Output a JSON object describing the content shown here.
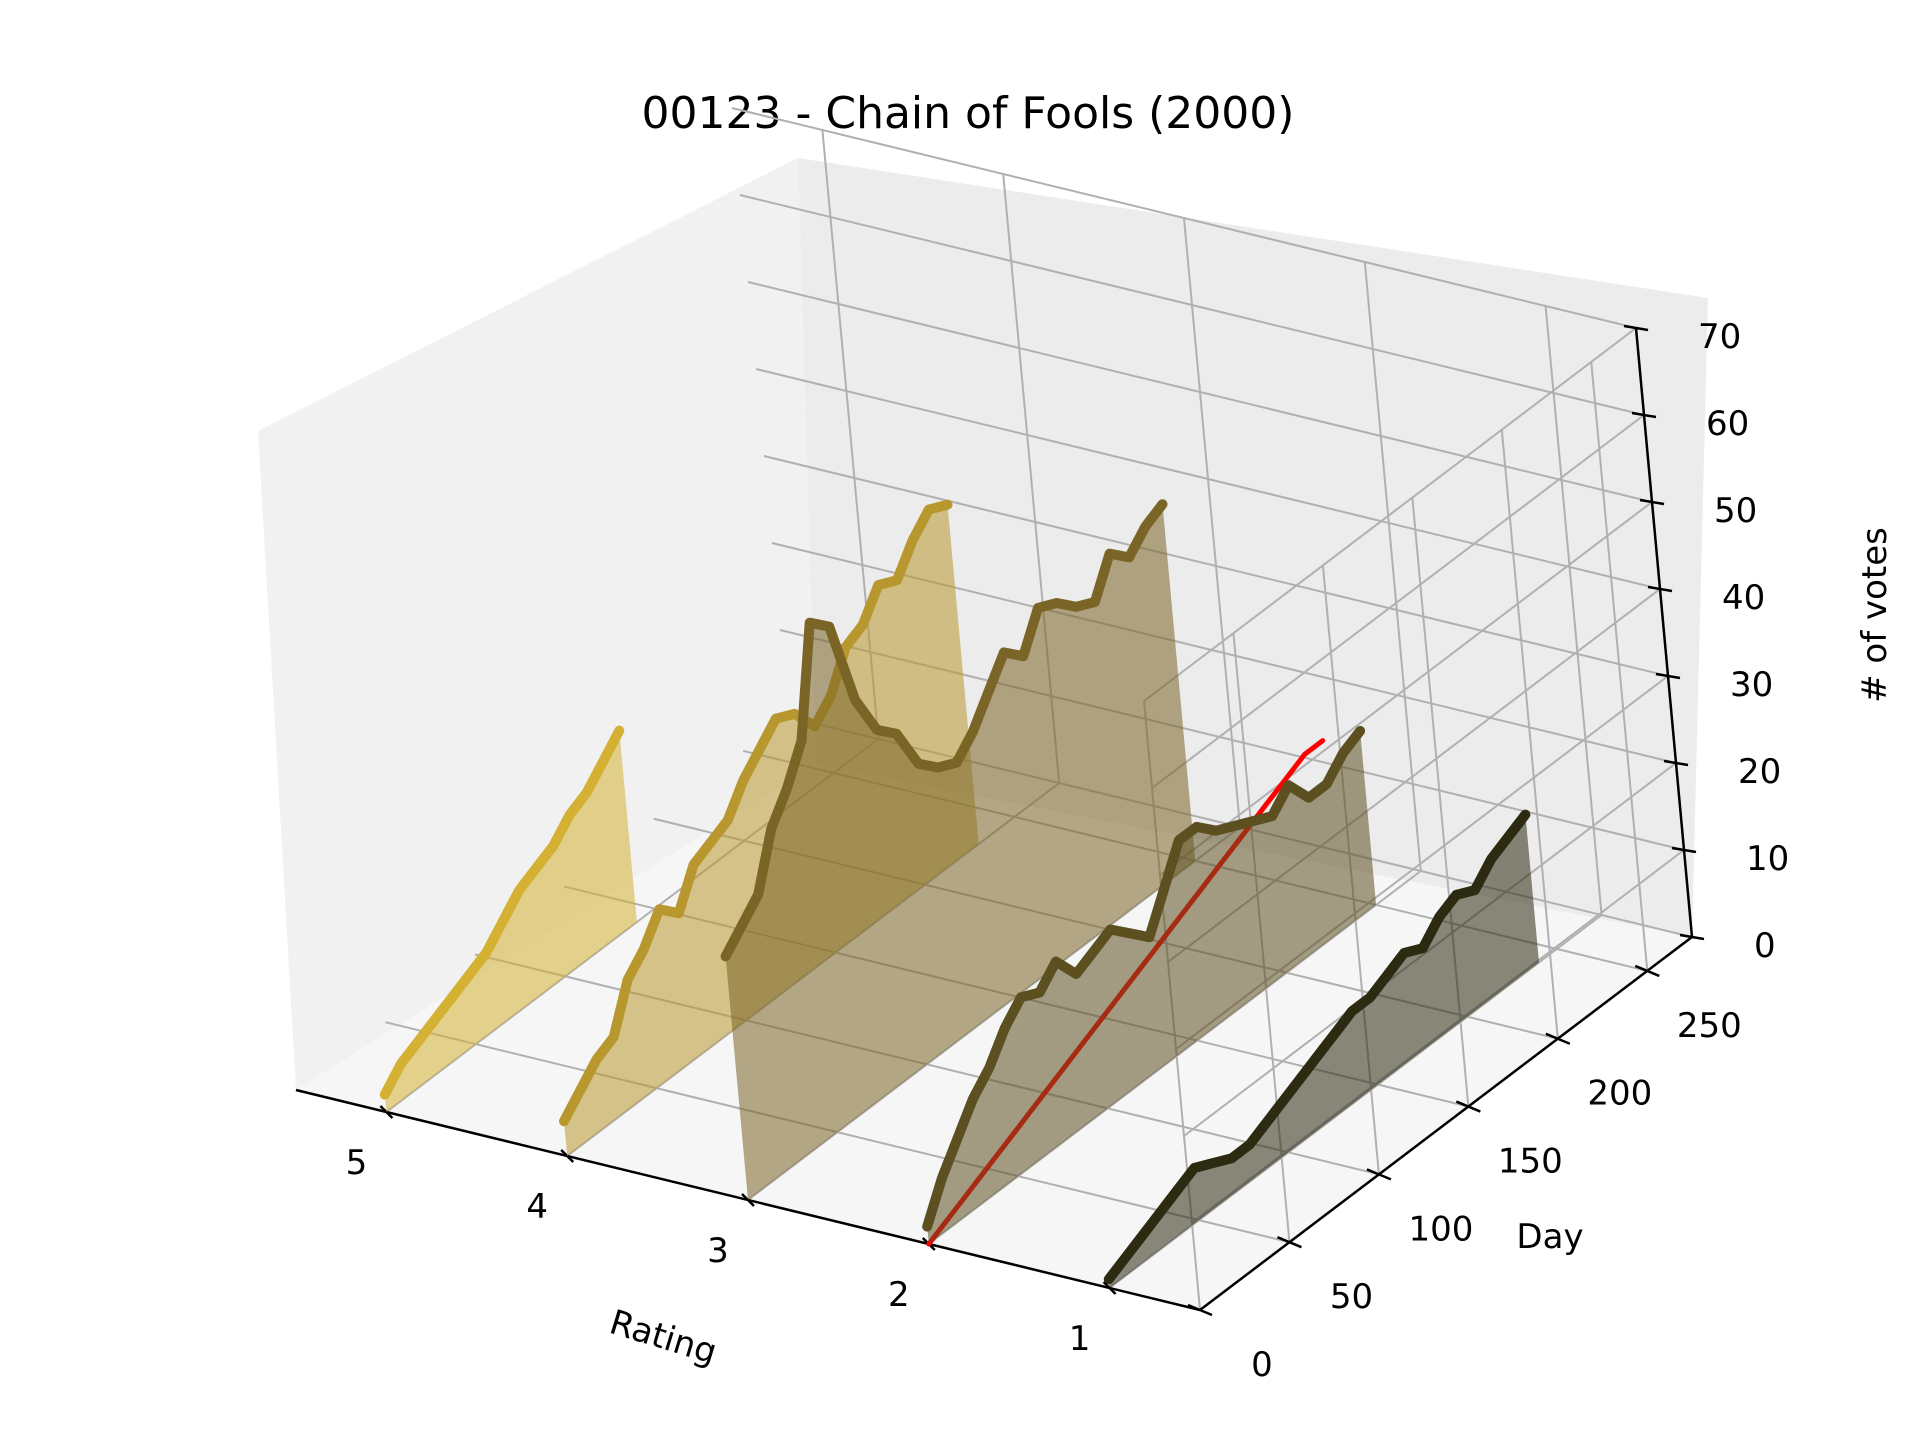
{
  "chart_data": {
    "type": "3d-line",
    "title": "00123 - Chain of Fools (2000)",
    "xlabel": "Rating",
    "ylabel": "Day",
    "zlabel": "# of votes",
    "x_ticks": [
      "5",
      "4",
      "3",
      "2",
      "1"
    ],
    "y_ticks": [
      "0",
      "50",
      "100",
      "150",
      "200",
      "250"
    ],
    "z_ticks": [
      "0",
      "10",
      "20",
      "30",
      "40",
      "50",
      "60",
      "70"
    ],
    "xlim": [
      0.5,
      5.5
    ],
    "ylim": [
      0,
      275
    ],
    "zlim": [
      0,
      70
    ],
    "grid": true,
    "series": [
      {
        "rating": 5,
        "color": "#d4b033",
        "days": [
          0,
          10,
          20,
          30,
          40,
          50,
          60,
          70,
          80,
          90,
          100,
          110,
          120,
          130,
          140
        ],
        "values": [
          2,
          4,
          5,
          6,
          7,
          8,
          9,
          11,
          13,
          14,
          15,
          17,
          18,
          20,
          22
        ]
      },
      {
        "rating": 4,
        "color": "#b8982e",
        "days": [
          0,
          10,
          20,
          30,
          40,
          50,
          60,
          70,
          80,
          90,
          100,
          110,
          120,
          130,
          140,
          150,
          160,
          170,
          180,
          190,
          200,
          210,
          220,
          230
        ],
        "values": [
          4,
          6,
          8,
          9,
          14,
          16,
          19,
          17,
          21,
          22,
          23,
          26,
          28,
          30,
          29,
          26,
          28,
          32,
          33,
          36,
          35,
          38,
          40,
          39
        ]
      },
      {
        "rating": 3,
        "color": "#7a6526",
        "days": [
          0,
          10,
          20,
          30,
          40,
          50,
          60,
          70,
          80,
          90,
          100,
          110,
          120,
          130,
          140,
          150,
          160,
          170,
          180,
          190,
          200,
          210,
          220,
          230,
          240,
          250
        ],
        "values": [
          28,
          30,
          32,
          38,
          41,
          45,
          57,
          55,
          45,
          40,
          38,
          33,
          31,
          30,
          32,
          35,
          38,
          36,
          40,
          39,
          37,
          36,
          40,
          38,
          40,
          41
        ]
      },
      {
        "rating": 2,
        "color": "#ff0000",
        "days": [
          0,
          10,
          20,
          30,
          40,
          50,
          60,
          70,
          80,
          90,
          100,
          110,
          120,
          130,
          140,
          150,
          160,
          170,
          180,
          190,
          200,
          210,
          220,
          230
        ],
        "values": [
          0,
          1,
          2,
          3,
          4,
          5,
          6,
          7,
          8,
          9,
          10,
          11,
          12,
          13,
          14,
          15,
          16,
          17,
          18,
          19,
          20,
          21,
          22,
          22
        ]
      },
      {
        "rating": 2,
        "color": "#5c4f20",
        "days": [
          0,
          10,
          20,
          30,
          40,
          50,
          60,
          70,
          80,
          90,
          100,
          110,
          120,
          130,
          140,
          150,
          160,
          170,
          180,
          190,
          200,
          210,
          220,
          230,
          240,
          250
        ],
        "values": [
          2,
          6,
          9,
          12,
          14,
          17,
          19,
          18,
          20,
          17,
          18,
          19,
          17,
          15,
          19,
          23,
          23,
          21,
          20,
          19,
          18,
          20,
          17,
          17,
          19,
          20
        ]
      },
      {
        "rating": 1,
        "color": "#2c2a10",
        "days": [
          0,
          10,
          20,
          30,
          40,
          50,
          60,
          70,
          80,
          90,
          100,
          110,
          120,
          130,
          140,
          150,
          160,
          170,
          180,
          190,
          200,
          210,
          220,
          230,
          240
        ],
        "values": [
          1,
          2,
          3,
          4,
          5,
          6,
          5,
          4,
          4,
          5,
          6,
          7,
          8,
          9,
          10,
          10,
          11,
          12,
          11,
          13,
          14,
          13,
          15,
          16,
          17
        ]
      }
    ]
  }
}
